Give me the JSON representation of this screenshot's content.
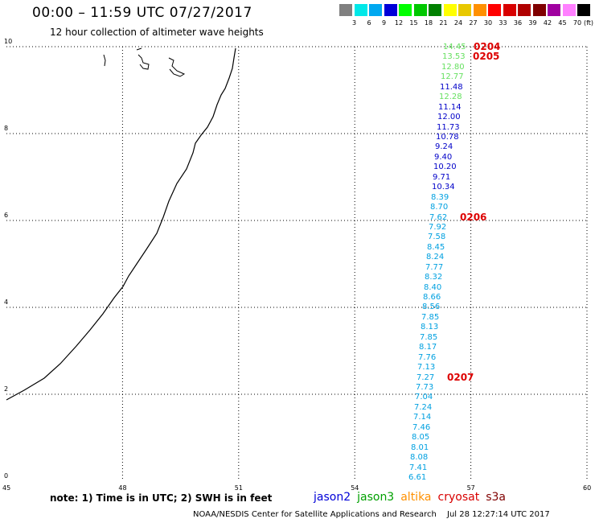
{
  "header": {
    "title": "00:00 – 11:59 UTC 07/27/2017",
    "subtitle": "12 hour collection of altimeter wave heights",
    "units": "(ft)"
  },
  "scale": {
    "labels": [
      "3",
      "6",
      "9",
      "12",
      "15",
      "18",
      "21",
      "24",
      "27",
      "30",
      "33",
      "36",
      "39",
      "42",
      "45",
      "70"
    ],
    "colors": [
      "#808080",
      "#00e8e8",
      "#00a8f0",
      "#0000d8",
      "#00ff00",
      "#00c800",
      "#008000",
      "#ffff00",
      "#e8c800",
      "#ff9000",
      "#ff0000",
      "#d80000",
      "#b00000",
      "#800000",
      "#a000a0",
      "#ff80ff",
      "#000000"
    ]
  },
  "axes": {
    "x_ticks": [
      "45",
      "48",
      "51",
      "54",
      "57",
      "60"
    ],
    "y_ticks": [
      "0",
      "2",
      "4",
      "6",
      "8",
      "10"
    ]
  },
  "observations": [
    {
      "value": "14.45",
      "color": "#66e060"
    },
    {
      "value": "13.53",
      "color": "#66e060"
    },
    {
      "value": "12.80",
      "color": "#66e060"
    },
    {
      "value": "12.77",
      "color": "#66e060"
    },
    {
      "value": "11.48",
      "color": "#0000c8"
    },
    {
      "value": "12.28",
      "color": "#66e060"
    },
    {
      "value": "11.14",
      "color": "#0000c8"
    },
    {
      "value": "12.00",
      "color": "#0000c8"
    },
    {
      "value": "11.73",
      "color": "#0000c8"
    },
    {
      "value": "10.78",
      "color": "#0000c8"
    },
    {
      "value": "9.24",
      "color": "#0000c8"
    },
    {
      "value": "9.40",
      "color": "#0000c8"
    },
    {
      "value": "10.20",
      "color": "#0000c8"
    },
    {
      "value": "9.71",
      "color": "#0000c8"
    },
    {
      "value": "10.34",
      "color": "#0000c8"
    },
    {
      "value": "8.39",
      "color": "#00a0e0"
    },
    {
      "value": "8.70",
      "color": "#00a0e0"
    },
    {
      "value": "7.62",
      "color": "#00a0e0"
    },
    {
      "value": "7.92",
      "color": "#00a0e0"
    },
    {
      "value": "7.58",
      "color": "#00a0e0"
    },
    {
      "value": "8.45",
      "color": "#00a0e0"
    },
    {
      "value": "8.24",
      "color": "#00a0e0"
    },
    {
      "value": "7.77",
      "color": "#00a0e0"
    },
    {
      "value": "8.32",
      "color": "#00a0e0"
    },
    {
      "value": "8.40",
      "color": "#00a0e0"
    },
    {
      "value": "8.66",
      "color": "#00a0e0"
    },
    {
      "value": "8.56",
      "color": "#00a0e0"
    },
    {
      "value": "7.85",
      "color": "#00a0e0"
    },
    {
      "value": "8.13",
      "color": "#00a0e0"
    },
    {
      "value": "7.85",
      "color": "#00a0e0"
    },
    {
      "value": "8.17",
      "color": "#00a0e0"
    },
    {
      "value": "7.76",
      "color": "#00a0e0"
    },
    {
      "value": "7.13",
      "color": "#00a0e0"
    },
    {
      "value": "7.27",
      "color": "#00a0e0"
    },
    {
      "value": "7.73",
      "color": "#00a0e0"
    },
    {
      "value": "7.04",
      "color": "#00a0e0"
    },
    {
      "value": "7.24",
      "color": "#00a0e0"
    },
    {
      "value": "7.14",
      "color": "#00a0e0"
    },
    {
      "value": "7.46",
      "color": "#00a0e0"
    },
    {
      "value": "8.05",
      "color": "#00a0e0"
    },
    {
      "value": "8.01",
      "color": "#00a0e0"
    },
    {
      "value": "8.08",
      "color": "#00a0e0"
    },
    {
      "value": "7.41",
      "color": "#00a0e0"
    },
    {
      "value": "6.61",
      "color": "#00a0e0"
    }
  ],
  "pass_times": [
    {
      "label": "0204",
      "index": 0
    },
    {
      "label": "0205",
      "index": 1
    },
    {
      "label": "0206",
      "index": 17
    },
    {
      "label": "0207",
      "index": 33
    }
  ],
  "footer": {
    "note": "note: 1) Time is in UTC; 2) SWH is in feet",
    "satellites": [
      {
        "name": "jason2",
        "color": "#0000d8"
      },
      {
        "name": "jason3",
        "color": "#00a000"
      },
      {
        "name": "altika",
        "color": "#ff9000"
      },
      {
        "name": "cryosat",
        "color": "#d80000"
      },
      {
        "name": "s3a",
        "color": "#800000"
      }
    ],
    "credit": "NOAA/NESDIS Center for Satellite Applications and Research",
    "timestamp": "Jul 28 12:27:14 UTC 2017"
  }
}
